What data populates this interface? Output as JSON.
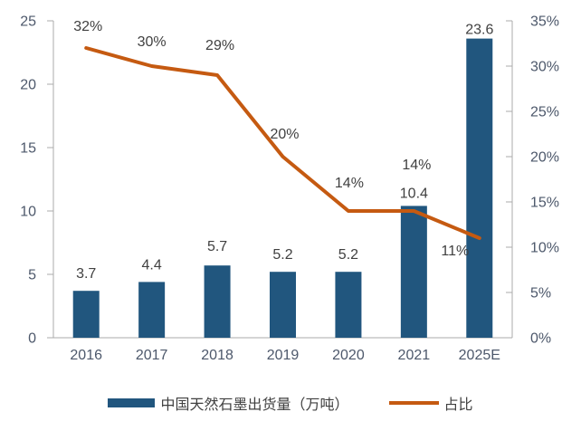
{
  "chart_data": {
    "type": "combo",
    "categories": [
      "2016",
      "2017",
      "2018",
      "2019",
      "2020",
      "2021",
      "2025E"
    ],
    "series": [
      {
        "name": "中国天然石墨出货量（万吨）",
        "type": "bar",
        "axis": "left",
        "values": [
          3.7,
          4.4,
          5.7,
          5.2,
          5.2,
          10.4,
          23.6
        ],
        "labels": [
          "3.7",
          "4.4",
          "5.7",
          "5.2",
          "5.2",
          "10.4",
          "23.6"
        ]
      },
      {
        "name": "占比",
        "type": "line",
        "axis": "right",
        "values": [
          32,
          30,
          29,
          20,
          14,
          14,
          11
        ],
        "labels": [
          "32%",
          "30%",
          "29%",
          "20%",
          "14%",
          "14%",
          "11%"
        ]
      }
    ],
    "left_axis": {
      "min": 0,
      "max": 25,
      "step": 5,
      "tick_labels": [
        "0",
        "5",
        "10",
        "15",
        "20",
        "25"
      ]
    },
    "right_axis": {
      "min": 0,
      "max": 35,
      "step": 5,
      "tick_labels": [
        "0%",
        "5%",
        "10%",
        "15%",
        "20%",
        "25%",
        "30%",
        "35%"
      ]
    },
    "grid": false,
    "legend_position": "bottom"
  },
  "legend": {
    "bar_label": "中国天然石墨出货量（万吨）",
    "line_label": "占比"
  },
  "colors": {
    "bar": "#21567E",
    "line": "#C55A11",
    "axis_line": "#ABABAB",
    "tick_label": "#4D586B",
    "data_label": "#404040"
  }
}
